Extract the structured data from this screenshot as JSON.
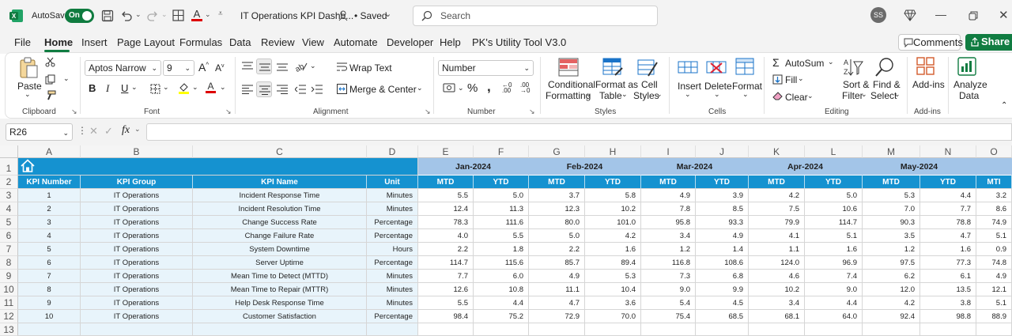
{
  "titlebar": {
    "autosave_label": "AutoSave",
    "autosave_state": "On",
    "doc_title": "IT Operations KPI Dashb...",
    "saved_label": "• Saved",
    "search_placeholder": "Search",
    "user_initials": "SS"
  },
  "tabs": [
    "File",
    "Home",
    "Insert",
    "Page Layout",
    "Formulas",
    "Data",
    "Review",
    "View",
    "Automate",
    "Developer",
    "Help",
    "PK's Utility Tool V3.0"
  ],
  "active_tab": "Home",
  "comments_label": "Comments",
  "share_label": "Share",
  "ribbon": {
    "clipboard": {
      "paste": "Paste",
      "group": "Clipboard"
    },
    "font": {
      "name": "Aptos Narrow",
      "size": "9",
      "group": "Font"
    },
    "alignment": {
      "wrap": "Wrap Text",
      "merge": "Merge & Center",
      "group": "Alignment"
    },
    "number": {
      "format": "Number",
      "group": "Number"
    },
    "styles": {
      "conditional1": "Conditional",
      "conditional2": "Formatting",
      "fmt_table1": "Format as",
      "fmt_table2": "Table",
      "cell_styles1": "Cell",
      "cell_styles2": "Styles",
      "group": "Styles"
    },
    "cells": {
      "insert": "Insert",
      "delete": "Delete",
      "format": "Format",
      "group": "Cells"
    },
    "editing": {
      "autosum": "AutoSum",
      "fill": "Fill",
      "clear": "Clear",
      "sort1": "Sort &",
      "sort2": "Filter",
      "find1": "Find &",
      "find2": "Select",
      "group": "Editing"
    },
    "addins": {
      "label": "Add-ins",
      "group": "Add-ins"
    },
    "analyze": {
      "label1": "Analyze",
      "label2": "Data"
    }
  },
  "formula_bar": {
    "name_box": "R26",
    "fx": "fx",
    "formula": ""
  },
  "columns": [
    "A",
    "B",
    "C",
    "D",
    "E",
    "F",
    "G",
    "H",
    "I",
    "J",
    "K",
    "L",
    "M",
    "N",
    "O"
  ],
  "rows": [
    "1",
    "2",
    "3",
    "4",
    "5",
    "6",
    "7",
    "8",
    "9",
    "10",
    "11",
    "12",
    "13"
  ],
  "months": [
    "Jan-2024",
    "Feb-2024",
    "Mar-2024",
    "Apr-2024",
    "May-2024"
  ],
  "headers": {
    "kpi_number": "KPI Number",
    "kpi_group": "KPI Group",
    "kpi_name": "KPI Name",
    "unit": "Unit",
    "mtd": "MTD",
    "ytd": "YTD",
    "partial": "MTI"
  },
  "kpis": [
    {
      "num": "1",
      "group": "IT Operations",
      "name": "Incident Response Time",
      "unit": "Minutes",
      "vals": [
        "5.5",
        "5.0",
        "3.7",
        "5.8",
        "4.9",
        "3.9",
        "4.2",
        "5.0",
        "5.3",
        "4.4",
        "3.2"
      ]
    },
    {
      "num": "2",
      "group": "IT Operations",
      "name": "Incident Resolution Time",
      "unit": "Minutes",
      "vals": [
        "12.4",
        "11.3",
        "12.3",
        "10.2",
        "7.8",
        "8.5",
        "7.5",
        "10.6",
        "7.0",
        "7.7",
        "8.6"
      ]
    },
    {
      "num": "3",
      "group": "IT Operations",
      "name": "Change Success Rate",
      "unit": "Percentage",
      "vals": [
        "78.3",
        "111.6",
        "80.0",
        "101.0",
        "95.8",
        "93.3",
        "79.9",
        "114.7",
        "90.3",
        "78.8",
        "74.9"
      ]
    },
    {
      "num": "4",
      "group": "IT Operations",
      "name": "Change Failure Rate",
      "unit": "Percentage",
      "vals": [
        "4.0",
        "5.5",
        "5.0",
        "4.2",
        "3.4",
        "4.9",
        "4.1",
        "5.1",
        "3.5",
        "4.7",
        "5.1"
      ]
    },
    {
      "num": "5",
      "group": "IT Operations",
      "name": "System Downtime",
      "unit": "Hours",
      "vals": [
        "2.2",
        "1.8",
        "2.2",
        "1.6",
        "1.2",
        "1.4",
        "1.1",
        "1.6",
        "1.2",
        "1.6",
        "0.9"
      ]
    },
    {
      "num": "6",
      "group": "IT Operations",
      "name": "Server Uptime",
      "unit": "Percentage",
      "vals": [
        "114.7",
        "115.6",
        "85.7",
        "89.4",
        "116.8",
        "108.6",
        "124.0",
        "96.9",
        "97.5",
        "77.3",
        "74.8"
      ]
    },
    {
      "num": "7",
      "group": "IT Operations",
      "name": "Mean Time to Detect (MTTD)",
      "unit": "Minutes",
      "vals": [
        "7.7",
        "6.0",
        "4.9",
        "5.3",
        "7.3",
        "6.8",
        "4.6",
        "7.4",
        "6.2",
        "6.1",
        "4.9"
      ]
    },
    {
      "num": "8",
      "group": "IT Operations",
      "name": "Mean Time to Repair (MTTR)",
      "unit": "Minutes",
      "vals": [
        "12.6",
        "10.8",
        "11.1",
        "10.4",
        "9.0",
        "9.9",
        "10.2",
        "9.0",
        "12.0",
        "13.5",
        "12.1"
      ]
    },
    {
      "num": "9",
      "group": "IT Operations",
      "name": "Help Desk Response Time",
      "unit": "Minutes",
      "vals": [
        "5.5",
        "4.4",
        "4.7",
        "3.6",
        "5.4",
        "4.5",
        "3.4",
        "4.4",
        "4.2",
        "3.8",
        "5.1"
      ]
    },
    {
      "num": "10",
      "group": "IT Operations",
      "name": "Customer Satisfaction",
      "unit": "Percentage",
      "vals": [
        "98.4",
        "75.2",
        "72.9",
        "70.0",
        "75.4",
        "68.5",
        "68.1",
        "64.0",
        "92.4",
        "98.8",
        "88.9"
      ]
    }
  ],
  "colors": {
    "accent": "#107c41",
    "header_blue": "#1592d0",
    "month_blue": "#a3c5e8",
    "light_row": "#e8f4fb"
  }
}
